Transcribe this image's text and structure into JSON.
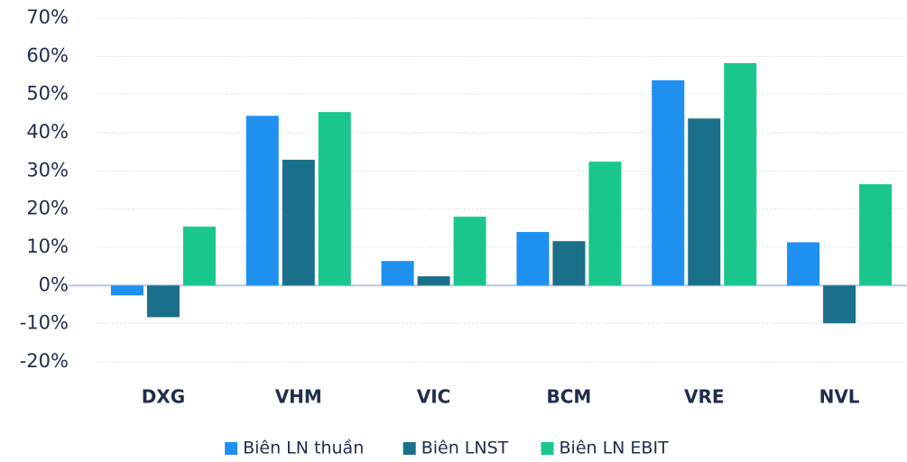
{
  "chart_data": {
    "type": "bar",
    "categories": [
      "DXG",
      "VHM",
      "VIC",
      "BCM",
      "VRE",
      "NVL"
    ],
    "series": [
      {
        "name": "Biên LN thuần",
        "color": "#1f8ff0",
        "values": [
          -2.6,
          44.4,
          6.4,
          14,
          53.7,
          11.3
        ]
      },
      {
        "name": "Biên LNST",
        "color": "#1a6f8a",
        "values": [
          -8.3,
          32.9,
          2.4,
          11.6,
          43.7,
          -9.9
        ]
      },
      {
        "name": "Biên LN EBIT",
        "color": "#19c78d",
        "values": [
          15.4,
          45.4,
          18,
          32.4,
          58.2,
          26.5
        ]
      }
    ],
    "ylim": [
      -20,
      70
    ],
    "yticks": [
      {
        "value": -20,
        "label": "-20%"
      },
      {
        "value": -10,
        "label": "-10%"
      },
      {
        "value": 0,
        "label": "0%"
      },
      {
        "value": 10,
        "label": "10%"
      },
      {
        "value": 20,
        "label": "20%"
      },
      {
        "value": 30,
        "label": "30%"
      },
      {
        "value": 40,
        "label": "40%"
      },
      {
        "value": 50,
        "label": "50%"
      },
      {
        "value": 60,
        "label": "60%"
      },
      {
        "value": 70,
        "label": "70%"
      }
    ],
    "grid": true,
    "legend": "bottom"
  }
}
